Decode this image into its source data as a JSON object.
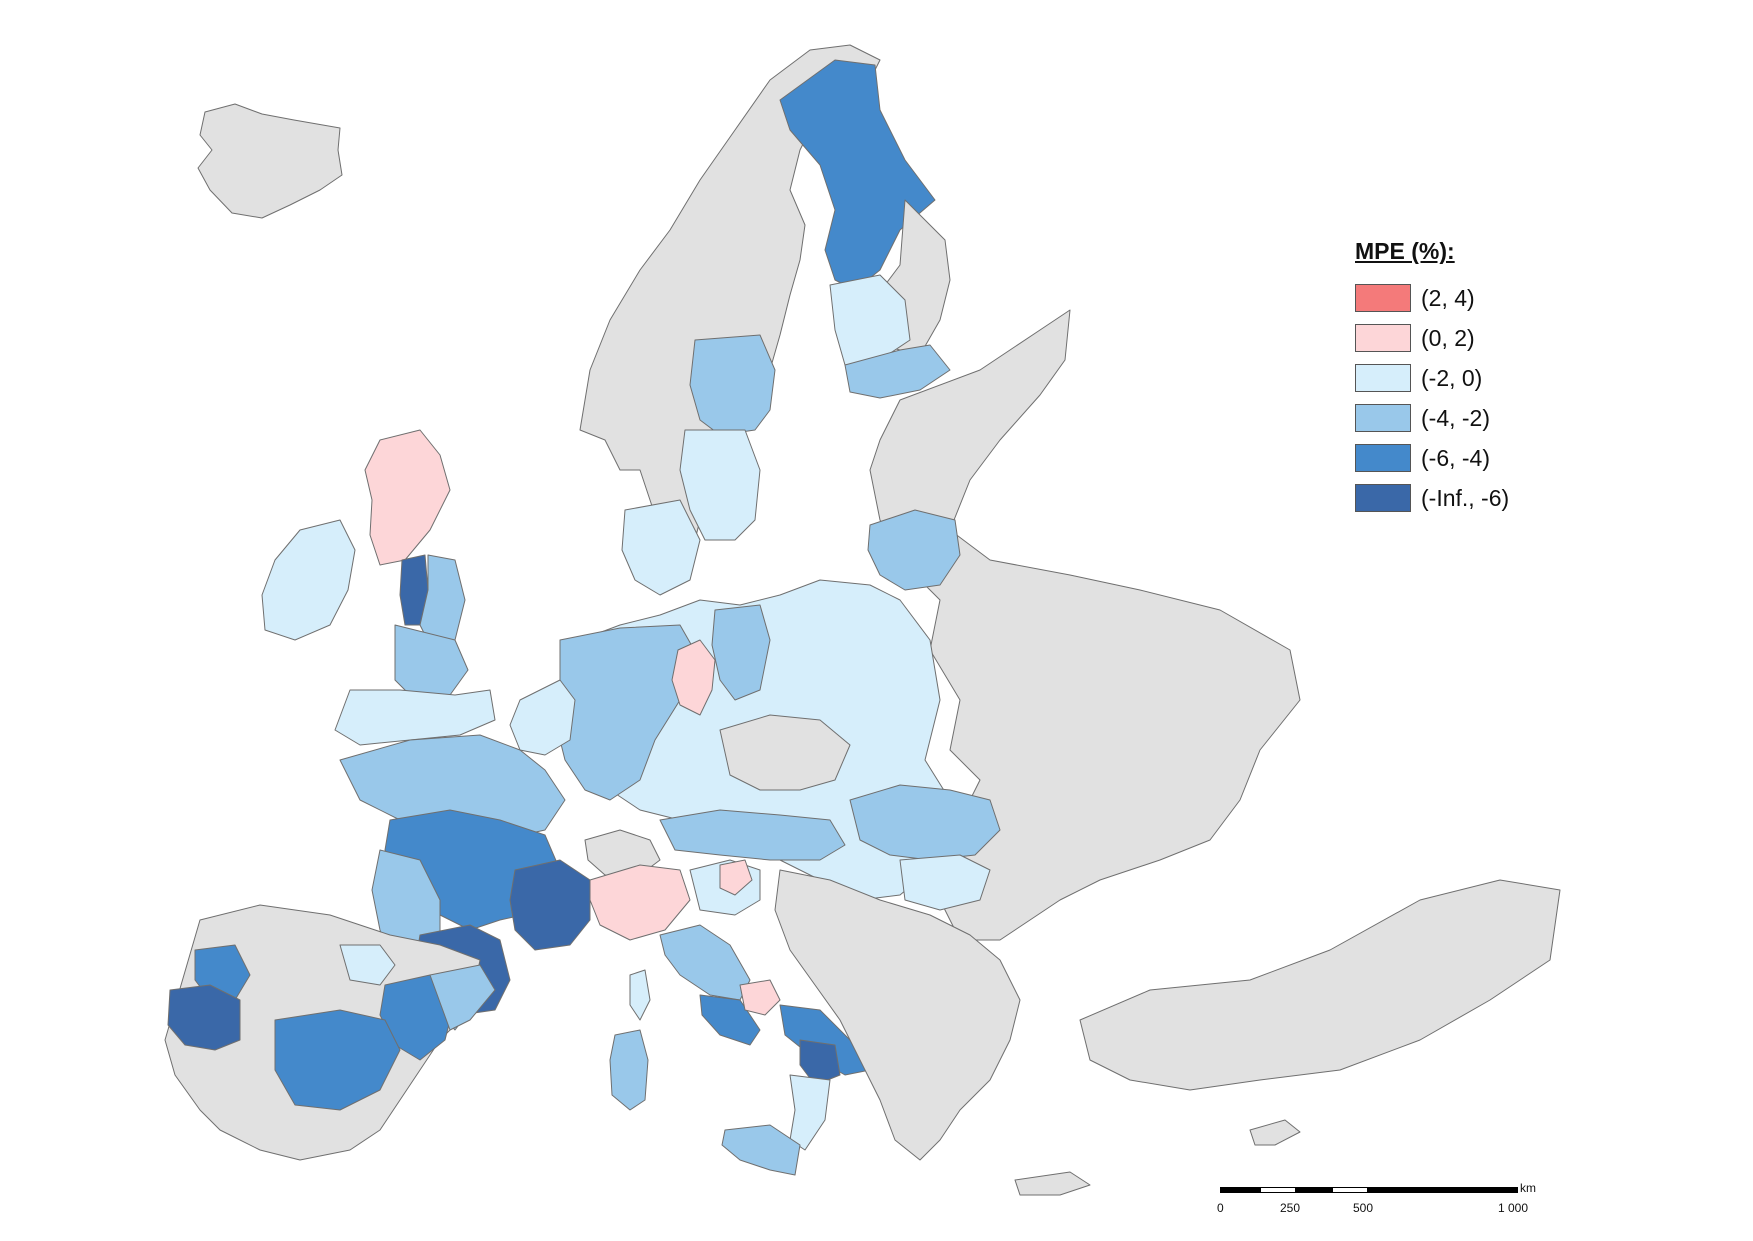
{
  "legend": {
    "title": "MPE (%):",
    "classes": [
      {
        "label": "(2, 4)",
        "color": "#f47a7a"
      },
      {
        "label": "(0, 2)",
        "color": "#fdd6d8"
      },
      {
        "label": "(-2, 0)",
        "color": "#d6eefb"
      },
      {
        "label": "(-4, -2)",
        "color": "#99c8ea"
      },
      {
        "label": "(-6, -4)",
        "color": "#4489cb"
      },
      {
        "label": "(-Inf., -6)",
        "color": "#3a68a8"
      }
    ]
  },
  "scalebar": {
    "unit": "km",
    "ticks": [
      "0",
      "250",
      "500",
      "1 000"
    ]
  },
  "colors": {
    "no_data": "#e1e1e1",
    "border": "#6f6f6f",
    "sea": "#ffffff"
  }
}
